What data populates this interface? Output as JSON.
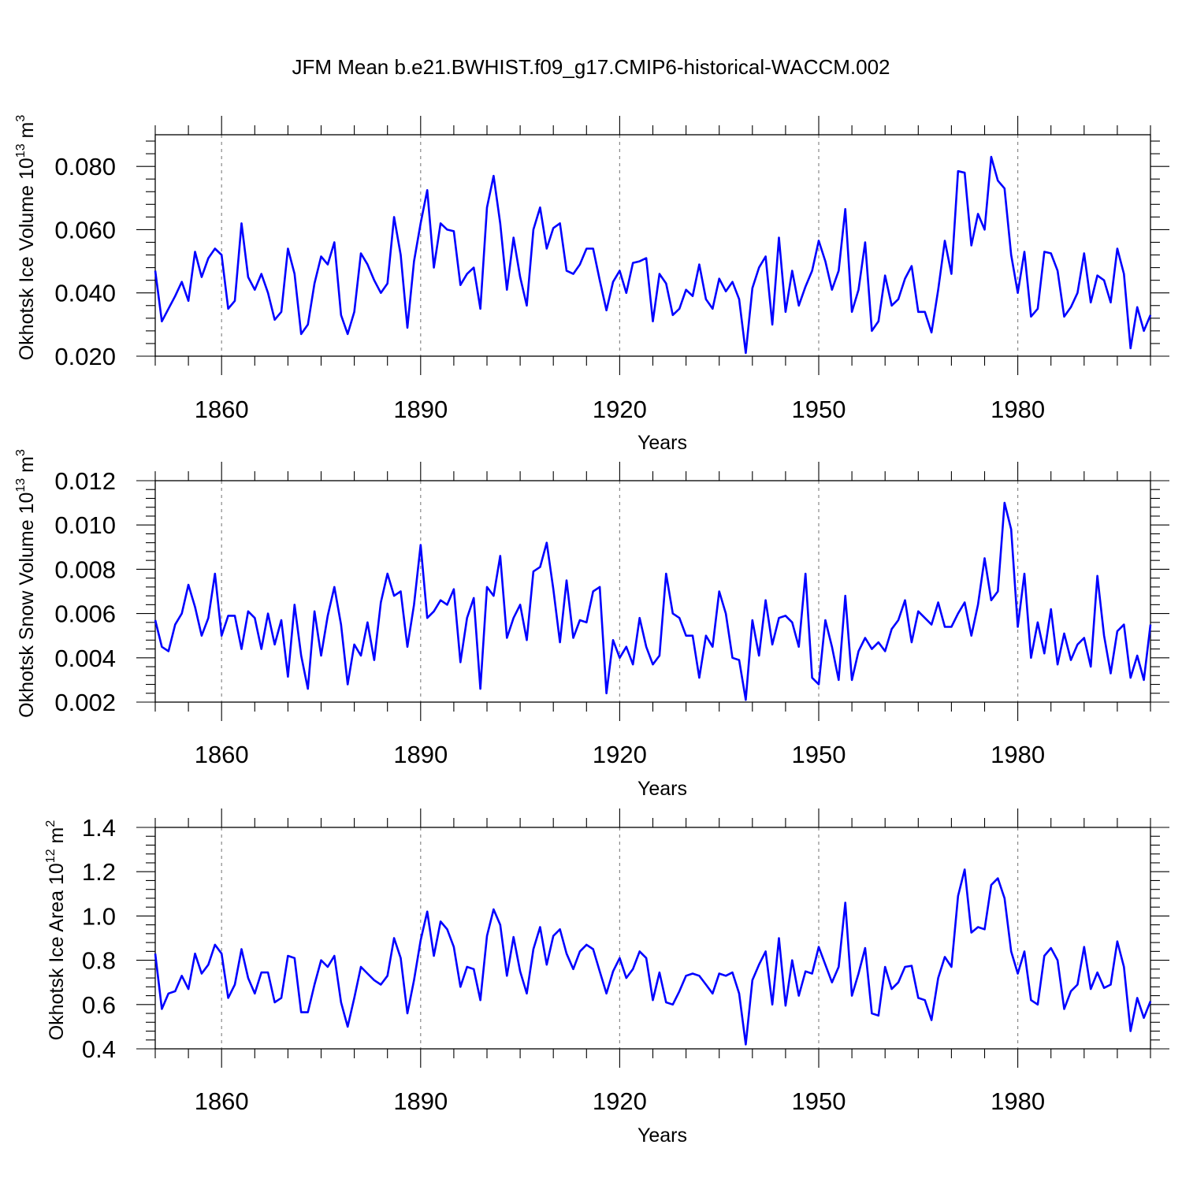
{
  "title": "JFM Mean b.e21.BWHIST.f09_g17.CMIP6-historical-WACCM.002",
  "chart_data": [
    {
      "type": "line",
      "title": "",
      "ylabel_main": "Okhotsk Ice Volume 10",
      "ylabel_exp": "13",
      "ylabel_unit": " m",
      "ylabel_unit_exp": "3",
      "xlabel": "Years",
      "xlim": [
        1850,
        2000
      ],
      "ylim": [
        0.02,
        0.09
      ],
      "yticks": [
        0.02,
        0.04,
        0.06,
        0.08
      ],
      "ytick_labels": [
        "0.020",
        "0.040",
        "0.060",
        "0.080"
      ],
      "xticks": [
        1860,
        1890,
        1920,
        1950,
        1980
      ],
      "xtick_labels": [
        "1860",
        "1890",
        "1920",
        "1950",
        "1980"
      ],
      "grid": "x-dashed",
      "series": [
        {
          "name": "Ice Volume",
          "color": "#0000ff",
          "x_start": 1850,
          "values": [
            0.047,
            0.031,
            0.035,
            0.039,
            0.0435,
            0.0375,
            0.053,
            0.045,
            0.051,
            0.054,
            0.052,
            0.035,
            0.0375,
            0.062,
            0.045,
            0.041,
            0.046,
            0.04,
            0.0315,
            0.034,
            0.054,
            0.046,
            0.027,
            0.03,
            0.043,
            0.0515,
            0.049,
            0.056,
            0.033,
            0.027,
            0.034,
            0.0525,
            0.049,
            0.044,
            0.04,
            0.043,
            0.064,
            0.052,
            0.029,
            0.05,
            0.062,
            0.0725,
            0.048,
            0.062,
            0.06,
            0.0595,
            0.0425,
            0.046,
            0.048,
            0.035,
            0.067,
            0.077,
            0.062,
            0.041,
            0.0575,
            0.045,
            0.036,
            0.06,
            0.067,
            0.054,
            0.0605,
            0.062,
            0.047,
            0.046,
            0.049,
            0.054,
            0.054,
            0.044,
            0.0345,
            0.0435,
            0.047,
            0.04,
            0.0495,
            0.05,
            0.051,
            0.031,
            0.046,
            0.043,
            0.033,
            0.035,
            0.041,
            0.039,
            0.049,
            0.038,
            0.035,
            0.0445,
            0.0405,
            0.0435,
            0.038,
            0.021,
            0.0415,
            0.048,
            0.0515,
            0.03,
            0.0575,
            0.034,
            0.047,
            0.036,
            0.042,
            0.047,
            0.0565,
            0.05,
            0.041,
            0.047,
            0.0665,
            0.034,
            0.041,
            0.056,
            0.028,
            0.031,
            0.0455,
            0.036,
            0.038,
            0.0445,
            0.0485,
            0.034,
            0.034,
            0.0275,
            0.041,
            0.0565,
            0.046,
            0.0785,
            0.078,
            0.055,
            0.065,
            0.06,
            0.083,
            0.0755,
            0.073,
            0.052,
            0.04,
            0.053,
            0.0325,
            0.035,
            0.053,
            0.0525,
            0.047,
            0.0325,
            0.0355,
            0.04,
            0.0525,
            0.037,
            0.0455,
            0.044,
            0.037,
            0.054,
            0.046,
            0.0225,
            0.0355,
            0.028,
            0.033
          ]
        }
      ]
    },
    {
      "type": "line",
      "title": "",
      "ylabel_main": "Okhotsk Snow Volume 10",
      "ylabel_exp": "13",
      "ylabel_unit": " m",
      "ylabel_unit_exp": "3",
      "xlabel": "Years",
      "xlim": [
        1850,
        2000
      ],
      "ylim": [
        0.002,
        0.012
      ],
      "yticks": [
        0.002,
        0.004,
        0.006,
        0.008,
        0.01,
        0.012
      ],
      "ytick_labels": [
        "0.002",
        "0.004",
        "0.006",
        "0.008",
        "0.010",
        "0.012"
      ],
      "xticks": [
        1860,
        1890,
        1920,
        1950,
        1980
      ],
      "xtick_labels": [
        "1860",
        "1890",
        "1920",
        "1950",
        "1980"
      ],
      "grid": "x-dashed",
      "series": [
        {
          "name": "Snow Volume",
          "color": "#0000ff",
          "x_start": 1850,
          "values": [
            0.0057,
            0.0045,
            0.0043,
            0.0055,
            0.006,
            0.0073,
            0.0063,
            0.005,
            0.0058,
            0.0078,
            0.005,
            0.0059,
            0.0059,
            0.0044,
            0.0061,
            0.0058,
            0.0044,
            0.006,
            0.0046,
            0.0057,
            0.00315,
            0.0064,
            0.0041,
            0.0026,
            0.0061,
            0.0041,
            0.0059,
            0.0072,
            0.0055,
            0.0028,
            0.0046,
            0.0041,
            0.0056,
            0.0039,
            0.0065,
            0.0078,
            0.0068,
            0.007,
            0.0045,
            0.0064,
            0.0091,
            0.0058,
            0.0061,
            0.0066,
            0.0064,
            0.0071,
            0.0038,
            0.0058,
            0.0067,
            0.0026,
            0.0072,
            0.0068,
            0.0086,
            0.0049,
            0.0058,
            0.0064,
            0.0048,
            0.0079,
            0.0081,
            0.0092,
            0.0071,
            0.0047,
            0.0075,
            0.0049,
            0.0057,
            0.0056,
            0.007,
            0.0072,
            0.0024,
            0.0048,
            0.004,
            0.0045,
            0.0037,
            0.0058,
            0.0045,
            0.0037,
            0.0041,
            0.0078,
            0.006,
            0.0058,
            0.005,
            0.005,
            0.0031,
            0.005,
            0.0045,
            0.007,
            0.006,
            0.004,
            0.0039,
            0.0021,
            0.0057,
            0.0041,
            0.0066,
            0.0046,
            0.0058,
            0.0059,
            0.0056,
            0.0045,
            0.0078,
            0.0031,
            0.0028,
            0.0057,
            0.0045,
            0.003,
            0.0068,
            0.003,
            0.0043,
            0.0049,
            0.0044,
            0.0047,
            0.0043,
            0.0053,
            0.0057,
            0.0066,
            0.0047,
            0.0061,
            0.0058,
            0.0055,
            0.0065,
            0.0054,
            0.0054,
            0.006,
            0.0065,
            0.005,
            0.0064,
            0.0085,
            0.0066,
            0.007,
            0.011,
            0.0098,
            0.0054,
            0.0078,
            0.004,
            0.0056,
            0.0042,
            0.0062,
            0.0037,
            0.0051,
            0.0039,
            0.0046,
            0.0049,
            0.0036,
            0.0077,
            0.005,
            0.0033,
            0.0052,
            0.0055,
            0.0031,
            0.0041,
            0.003,
            0.0055
          ]
        }
      ]
    },
    {
      "type": "line",
      "title": "",
      "ylabel_main": "Okhotsk Ice Area 10",
      "ylabel_exp": "12",
      "ylabel_unit": " m",
      "ylabel_unit_exp": "2",
      "xlabel": "Years",
      "xlim": [
        1850,
        2000
      ],
      "ylim": [
        0.4,
        1.4
      ],
      "yticks": [
        0.4,
        0.6,
        0.8,
        1.0,
        1.2,
        1.4
      ],
      "ytick_labels": [
        "0.4",
        "0.6",
        "0.8",
        "1.0",
        "1.2",
        "1.4"
      ],
      "xticks": [
        1860,
        1890,
        1920,
        1950,
        1980
      ],
      "xtick_labels": [
        "1860",
        "1890",
        "1920",
        "1950",
        "1980"
      ],
      "grid": "x-dashed",
      "series": [
        {
          "name": "Ice Area",
          "color": "#0000ff",
          "x_start": 1850,
          "values": [
            0.83,
            0.58,
            0.65,
            0.66,
            0.73,
            0.67,
            0.83,
            0.74,
            0.78,
            0.87,
            0.83,
            0.63,
            0.69,
            0.85,
            0.72,
            0.65,
            0.745,
            0.745,
            0.61,
            0.63,
            0.82,
            0.81,
            0.565,
            0.565,
            0.69,
            0.8,
            0.77,
            0.82,
            0.61,
            0.5,
            0.63,
            0.77,
            0.74,
            0.71,
            0.69,
            0.73,
            0.9,
            0.81,
            0.56,
            0.71,
            0.89,
            1.02,
            0.82,
            0.975,
            0.94,
            0.86,
            0.68,
            0.77,
            0.76,
            0.62,
            0.91,
            1.03,
            0.96,
            0.73,
            0.905,
            0.75,
            0.65,
            0.85,
            0.95,
            0.78,
            0.91,
            0.94,
            0.83,
            0.76,
            0.84,
            0.87,
            0.85,
            0.75,
            0.65,
            0.75,
            0.81,
            0.72,
            0.76,
            0.84,
            0.81,
            0.62,
            0.745,
            0.61,
            0.6,
            0.66,
            0.73,
            0.74,
            0.73,
            0.69,
            0.65,
            0.74,
            0.73,
            0.745,
            0.65,
            0.42,
            0.71,
            0.78,
            0.84,
            0.6,
            0.9,
            0.595,
            0.8,
            0.64,
            0.75,
            0.74,
            0.86,
            0.78,
            0.7,
            0.77,
            1.06,
            0.64,
            0.74,
            0.855,
            0.56,
            0.55,
            0.77,
            0.67,
            0.7,
            0.77,
            0.775,
            0.63,
            0.62,
            0.53,
            0.72,
            0.815,
            0.77,
            1.09,
            1.21,
            0.925,
            0.95,
            0.94,
            1.14,
            1.17,
            1.08,
            0.84,
            0.74,
            0.84,
            0.62,
            0.6,
            0.82,
            0.855,
            0.8,
            0.58,
            0.66,
            0.69,
            0.86,
            0.67,
            0.745,
            0.675,
            0.69,
            0.885,
            0.77,
            0.48,
            0.63,
            0.54,
            0.615
          ]
        }
      ]
    }
  ]
}
